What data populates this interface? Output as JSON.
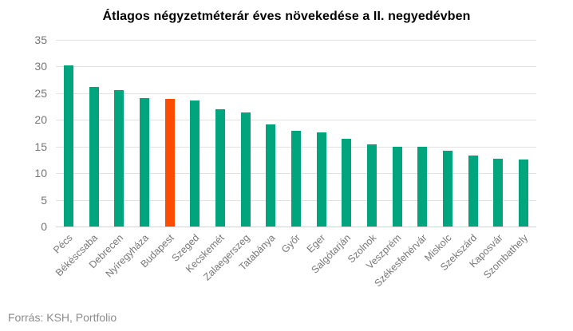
{
  "title": "Átlagos négyzetméterár éves növekedése a II. negyedévben",
  "source": "Forrás: KSH, Portfolio",
  "colors": {
    "bar": "#00a57e",
    "highlight": "#fc4c02",
    "grid": "#e1e1e1",
    "baseline": "#d4d4d4",
    "axis_text": "#757575",
    "label_text": "#777777",
    "title_text": "#000000",
    "source_text": "#8c8c8c",
    "background": "#ffffff"
  },
  "chart_data": {
    "type": "bar",
    "title": "Átlagos négyzetméterár éves növekedése a II. negyedévben",
    "categories": [
      "Pécs",
      "Békéscsaba",
      "Debrecen",
      "Nyíregyháza",
      "Budapest",
      "Szeged",
      "Kecskemét",
      "Zalaegerszeg",
      "Tatabánya",
      "Győr",
      "Eger",
      "Salgótarján",
      "Szolnok",
      "Veszprém",
      "Székesfehérvár",
      "Miskolc",
      "Szekszárd",
      "Kaposvár",
      "Szombathely"
    ],
    "values": [
      30.2,
      26.2,
      25.6,
      24.1,
      24.0,
      23.7,
      22.0,
      21.4,
      19.1,
      18.0,
      17.7,
      16.5,
      15.4,
      15.0,
      14.9,
      14.2,
      13.3,
      12.7,
      12.6
    ],
    "highlight_category": "Budapest",
    "xlabel": "",
    "ylabel": "",
    "ylim": [
      0,
      35
    ],
    "yticks": [
      0,
      5,
      10,
      15,
      20,
      25,
      30,
      35
    ],
    "grid": true,
    "legend": false,
    "xlabel_rotation": -45
  }
}
